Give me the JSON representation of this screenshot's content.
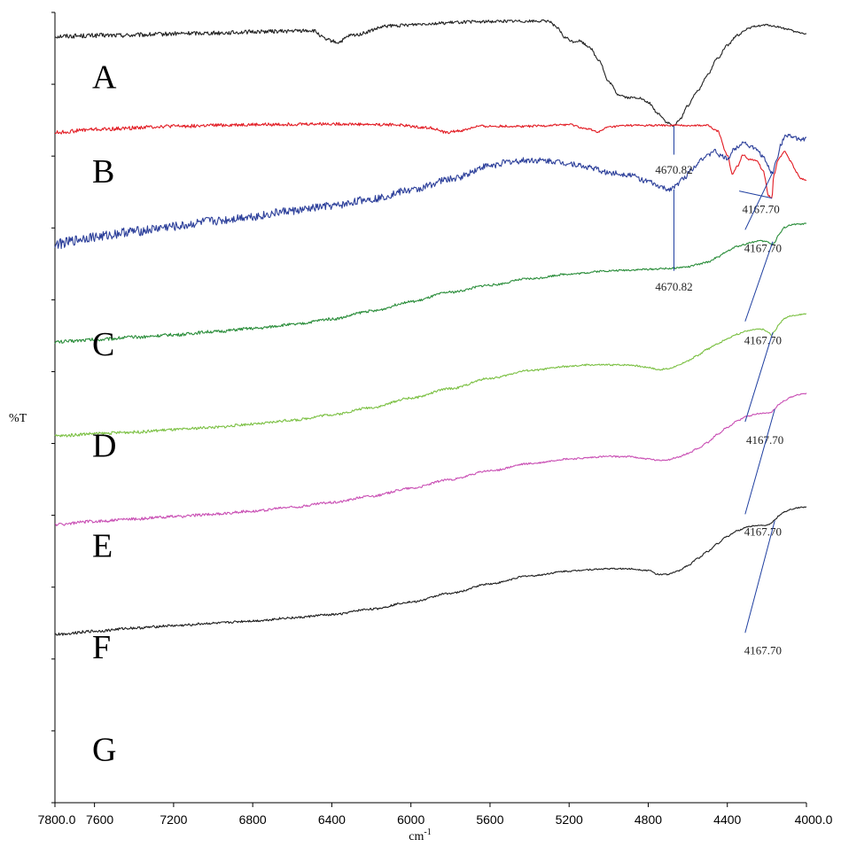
{
  "chart_data": {
    "type": "line",
    "title": "",
    "xlabel": "cm",
    "xlabel_superscript": "-1",
    "ylabel": "%T",
    "xlim": [
      7800.0,
      4000.0
    ],
    "x_reversed": true,
    "x_ticks": [
      "7800.0",
      "7600",
      "7200",
      "6800",
      "6400",
      "6000",
      "5600",
      "5200",
      "4800",
      "4400",
      "4000.0"
    ],
    "x_tick_values": [
      7800,
      7600,
      7200,
      6800,
      6400,
      6000,
      5600,
      5200,
      4800,
      4400,
      4000
    ],
    "y_ticks_labeled": false,
    "grid": false,
    "legend": "none",
    "series": [
      {
        "name": "A",
        "color": "#222222",
        "noise": 0.6,
        "x": [
          7800,
          7500,
          7000,
          6700,
          6500,
          6420,
          6370,
          6300,
          6100,
          5900,
          5700,
          5500,
          5300,
          5260,
          5220,
          5180,
          5150,
          5100,
          5050,
          5000,
          4950,
          4900,
          4850,
          4800,
          4750,
          4700,
          4670,
          4640,
          4600,
          4550,
          4500,
          4450,
          4400,
          4350,
          4300,
          4250,
          4200,
          4150,
          4100,
          4050,
          4000
        ],
        "y": [
          97.0,
          97.1,
          97.4,
          97.6,
          97.7,
          96.5,
          96.2,
          97.1,
          98.3,
          98.6,
          98.8,
          98.9,
          98.9,
          98.0,
          96.8,
          96.3,
          96.4,
          95.7,
          94.0,
          91.2,
          89.6,
          89.2,
          89.2,
          88.6,
          87.2,
          86.0,
          85.6,
          86.5,
          88.2,
          90.1,
          92.1,
          94.2,
          95.8,
          97.1,
          97.9,
          98.3,
          98.4,
          98.2,
          97.9,
          97.5,
          97.3
        ]
      },
      {
        "name": "B",
        "color": "#e21b23",
        "noise": 0.5,
        "x": [
          7800,
          7600,
          7200,
          6800,
          6400,
          6100,
          5900,
          5820,
          5760,
          5650,
          5400,
          5200,
          5100,
          5050,
          5000,
          4900,
          4800,
          4700,
          4600,
          4500,
          4450,
          4400,
          4375,
          4350,
          4320,
          4290,
          4250,
          4220,
          4190,
          4175,
          4165,
          4140,
          4110,
          4080,
          4050,
          4030,
          4000
        ],
        "y": [
          84.8,
          85.2,
          85.6,
          85.8,
          85.9,
          85.8,
          85.4,
          84.8,
          85.0,
          85.6,
          85.6,
          85.8,
          85.2,
          84.9,
          85.5,
          85.7,
          85.7,
          85.7,
          85.7,
          85.7,
          85.0,
          82.0,
          79.6,
          80.5,
          82.0,
          81.4,
          81.2,
          80.0,
          76.8,
          76.4,
          79.5,
          81.5,
          82.4,
          81.2,
          79.8,
          79.0,
          78.8
        ]
      },
      {
        "name": "C",
        "color": "#2c3f9a",
        "noise": 1.3,
        "x": [
          7800,
          7600,
          7400,
          7200,
          7000,
          6800,
          6600,
          6400,
          6200,
          6000,
          5800,
          5600,
          5500,
          5400,
          5300,
          5200,
          5100,
          5000,
          4900,
          4800,
          4750,
          4700,
          4670,
          4620,
          4580,
          4530,
          4500,
          4470,
          4430,
          4400,
          4360,
          4320,
          4280,
          4250,
          4220,
          4200,
          4180,
          4170,
          4150,
          4130,
          4110,
          4090,
          4060,
          4030,
          4000
        ],
        "y": [
          70.7,
          71.6,
          72.3,
          72.9,
          73.6,
          74.2,
          74.9,
          75.5,
          76.4,
          77.5,
          78.9,
          80.6,
          81.1,
          81.3,
          81.2,
          80.9,
          80.4,
          79.7,
          79.5,
          78.6,
          78.0,
          77.6,
          77.9,
          79.0,
          80.2,
          81.5,
          81.8,
          82.5,
          81.8,
          81.5,
          82.8,
          83.6,
          83.0,
          82.6,
          81.8,
          80.8,
          79.8,
          79.7,
          81.5,
          83.2,
          84.3,
          84.5,
          84.1,
          83.9,
          84.0
        ]
      },
      {
        "name": "D",
        "color": "#2a8d3a",
        "noise": 0.45,
        "x": [
          7800,
          7600,
          7400,
          7200,
          7000,
          6800,
          6600,
          6400,
          6200,
          6000,
          5800,
          5600,
          5400,
          5200,
          5000,
          4900,
          4800,
          4700,
          4600,
          4550,
          4500,
          4450,
          4400,
          4350,
          4320,
          4280,
          4240,
          4200,
          4175,
          4160,
          4140,
          4110,
          4080,
          4050,
          4020,
          4000
        ],
        "y": [
          58.3,
          58.6,
          58.9,
          59.2,
          59.6,
          60.0,
          60.5,
          61.2,
          62.2,
          63.4,
          64.6,
          65.5,
          66.3,
          66.9,
          67.3,
          67.4,
          67.5,
          67.6,
          67.8,
          68.1,
          68.4,
          69.0,
          69.8,
          70.4,
          70.6,
          70.9,
          71.1,
          71.0,
          70.7,
          70.9,
          71.9,
          72.8,
          73.1,
          73.2,
          73.2,
          73.3
        ]
      },
      {
        "name": "E",
        "color": "#7bc043",
        "noise": 0.4,
        "x": [
          7800,
          7600,
          7400,
          7200,
          7000,
          6800,
          6600,
          6400,
          6200,
          6000,
          5800,
          5600,
          5400,
          5200,
          5100,
          5000,
          4900,
          4800,
          4750,
          4700,
          4650,
          4600,
          4550,
          4500,
          4450,
          4400,
          4350,
          4300,
          4250,
          4220,
          4200,
          4175,
          4160,
          4140,
          4110,
          4080,
          4050,
          4020,
          4000
        ],
        "y": [
          46.4,
          46.7,
          46.9,
          47.2,
          47.5,
          47.9,
          48.4,
          49.1,
          50.0,
          51.2,
          52.4,
          53.7,
          54.7,
          55.2,
          55.4,
          55.4,
          55.4,
          55.1,
          54.8,
          54.9,
          55.3,
          55.9,
          56.6,
          57.4,
          58.1,
          58.7,
          59.3,
          59.7,
          59.9,
          59.9,
          59.6,
          59.2,
          59.7,
          60.5,
          61.3,
          61.6,
          61.7,
          61.8,
          61.9
        ]
      },
      {
        "name": "F",
        "color": "#c94fb4",
        "noise": 0.4,
        "x": [
          7800,
          7600,
          7400,
          7200,
          7000,
          6800,
          6600,
          6400,
          6200,
          6000,
          5800,
          5600,
          5400,
          5200,
          5000,
          4900,
          4800,
          4750,
          4700,
          4650,
          4600,
          4550,
          4500,
          4450,
          4400,
          4350,
          4300,
          4250,
          4220,
          4200,
          4180,
          4160,
          4140,
          4110,
          4080,
          4050,
          4020,
          4000
        ],
        "y": [
          35.2,
          35.6,
          35.9,
          36.2,
          36.5,
          36.9,
          37.4,
          38.0,
          38.8,
          39.8,
          40.9,
          42.0,
          42.9,
          43.5,
          43.8,
          43.8,
          43.5,
          43.3,
          43.4,
          43.7,
          44.2,
          44.8,
          45.6,
          46.6,
          47.5,
          48.3,
          48.9,
          49.2,
          49.3,
          49.3,
          49.4,
          49.8,
          50.4,
          50.9,
          51.3,
          51.6,
          51.7,
          51.8
        ]
      },
      {
        "name": "G",
        "color": "#1e1e1e",
        "noise": 0.35,
        "x": [
          7800,
          7600,
          7400,
          7200,
          7000,
          6800,
          6600,
          6400,
          6200,
          6000,
          5800,
          5600,
          5400,
          5200,
          5100,
          5000,
          4900,
          4800,
          4750,
          4700,
          4650,
          4600,
          4550,
          4500,
          4450,
          4400,
          4350,
          4300,
          4250,
          4220,
          4200,
          4180,
          4160,
          4140,
          4110,
          4080,
          4050,
          4020,
          4000
        ],
        "y": [
          21.3,
          21.7,
          22.1,
          22.4,
          22.7,
          23.0,
          23.4,
          23.8,
          24.5,
          25.4,
          26.5,
          27.7,
          28.7,
          29.3,
          29.5,
          29.6,
          29.6,
          29.4,
          28.9,
          28.9,
          29.3,
          30.0,
          30.9,
          31.8,
          32.8,
          33.7,
          34.4,
          34.9,
          35.1,
          35.1,
          35.1,
          35.3,
          35.8,
          36.3,
          36.8,
          37.1,
          37.3,
          37.4,
          37.4
        ]
      }
    ],
    "panel_labels": [
      {
        "text": "A",
        "y": 90.4
      },
      {
        "text": "B",
        "y": 78.5
      },
      {
        "text": "C",
        "y": 56.6
      },
      {
        "text": "D",
        "y": 43.8
      },
      {
        "text": "E",
        "y": 31.1
      },
      {
        "text": "F",
        "y": 18.3
      },
      {
        "text": "G",
        "y": 5.3
      }
    ],
    "annotations": [
      {
        "text": "4670.82",
        "x1": 4670,
        "y1": 85.6,
        "x2": 4670,
        "y2": 82.0,
        "tx": 4670,
        "ty": 79.6,
        "anchor": "middle",
        "color": "#1f3fa0"
      },
      {
        "text": "4167.70",
        "x1": 4175,
        "y1": 76.5,
        "x2": 4340,
        "y2": 77.4,
        "tx": 4230,
        "ty": 74.6,
        "anchor": "middle",
        "color": "#1f3fa0"
      },
      {
        "text": "4167.70",
        "x1": 4170,
        "y1": 79.8,
        "x2": 4310,
        "y2": 72.5,
        "tx": 4220,
        "ty": 69.7,
        "anchor": "middle",
        "color": "#1f3fa0"
      },
      {
        "text": "4670.82",
        "x1": 4670,
        "y1": 77.6,
        "x2": 4670,
        "y2": 67.3,
        "tx": 4670,
        "ty": 64.8,
        "anchor": "middle",
        "color": "#1f3fa0"
      },
      {
        "text": "4167.70",
        "x1": 4170,
        "y1": 71.0,
        "x2": 4310,
        "y2": 60.9,
        "tx": 4220,
        "ty": 58.0,
        "anchor": "middle",
        "color": "#1f3fa0"
      },
      {
        "text": "4167.70",
        "x1": 4170,
        "y1": 59.5,
        "x2": 4310,
        "y2": 48.2,
        "tx": 4210,
        "ty": 45.4,
        "anchor": "middle",
        "color": "#1f3fa0"
      },
      {
        "text": "4167.70",
        "x1": 4160,
        "y1": 49.8,
        "x2": 4310,
        "y2": 36.5,
        "tx": 4220,
        "ty": 33.8,
        "anchor": "middle",
        "color": "#1f3fa0"
      },
      {
        "text": "4167.70",
        "x1": 4160,
        "y1": 35.7,
        "x2": 4310,
        "y2": 21.5,
        "tx": 4220,
        "ty": 18.8,
        "anchor": "middle",
        "color": "#1f3fa0"
      }
    ]
  }
}
